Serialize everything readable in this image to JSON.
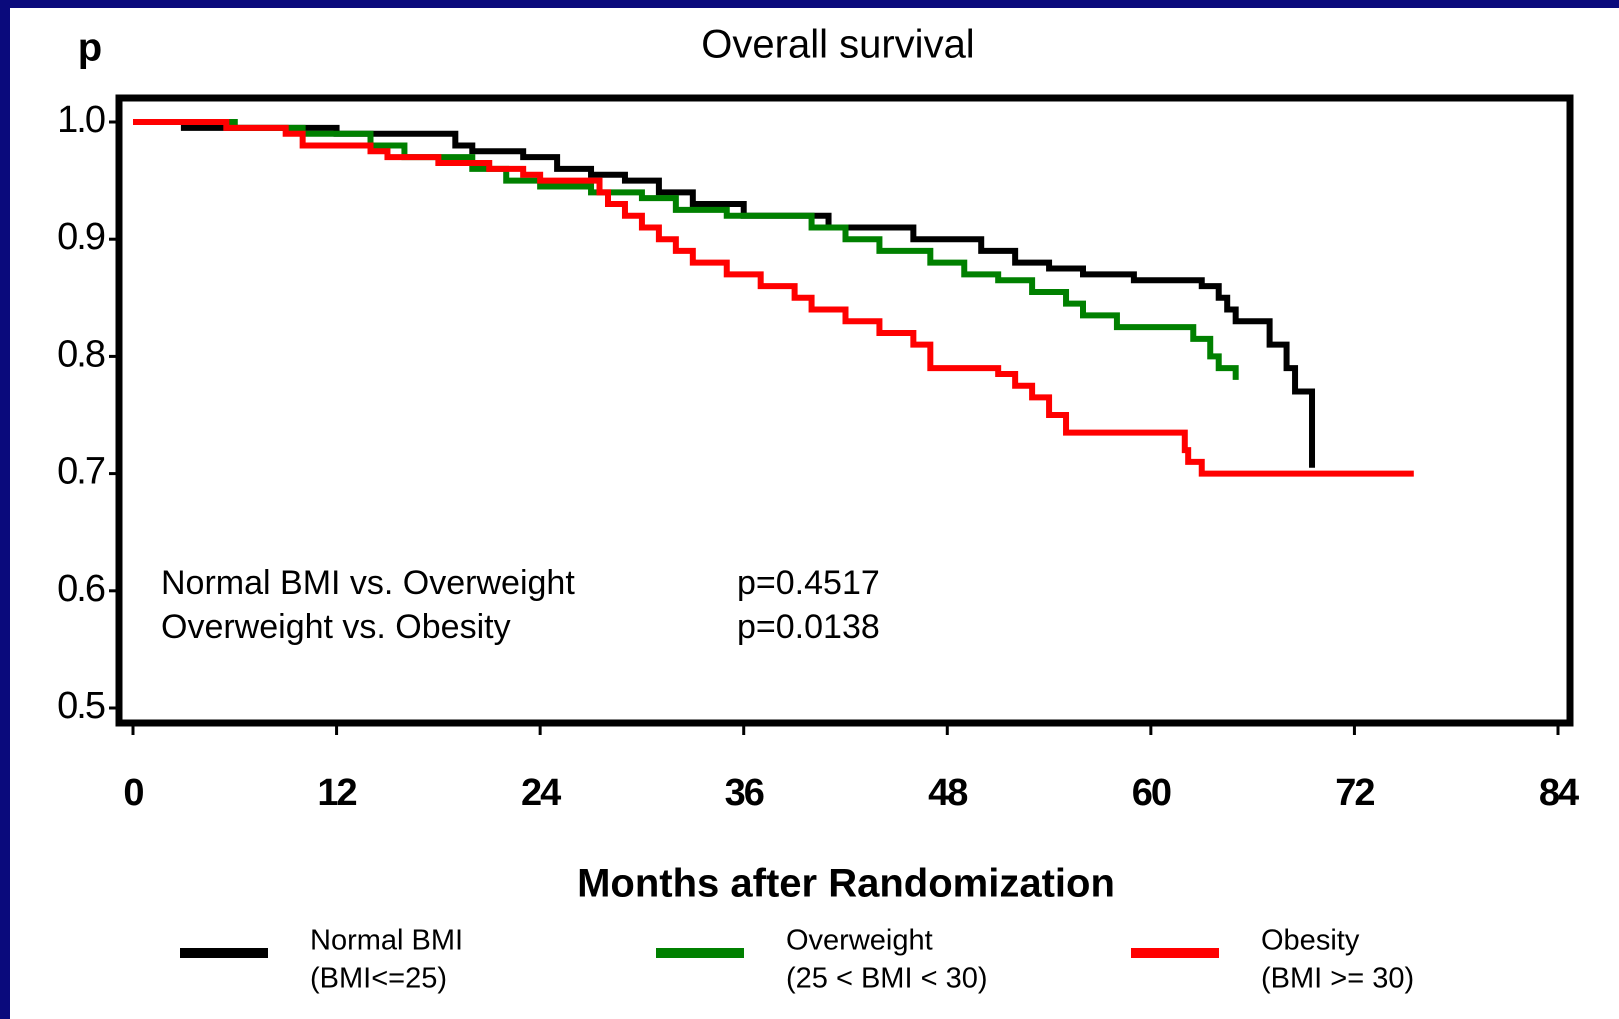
{
  "chart_data": {
    "type": "step",
    "title": "Overall survival",
    "y_label": "p",
    "x_label": "Months after Randomization",
    "xlim": [
      0,
      84
    ],
    "xticks": [
      0,
      12,
      24,
      36,
      48,
      60,
      72,
      84
    ],
    "ylim": [
      0.5,
      1.0
    ],
    "yticks": [
      0.5,
      0.6,
      0.7,
      0.8,
      0.9,
      {
        "value": 1.0,
        "label": "1.0"
      }
    ],
    "series": [
      {
        "name": "Normal BMI",
        "note": "(BMI<=25)",
        "color": "#000000",
        "x": [
          0,
          3,
          12,
          19,
          20,
          23,
          25,
          27,
          29,
          31,
          33,
          36,
          41,
          46,
          50,
          52,
          54,
          56,
          59,
          63,
          64,
          64.5,
          65,
          67,
          68,
          68.5,
          69.5
        ],
        "values": [
          1.0,
          0.995,
          0.99,
          0.98,
          0.975,
          0.97,
          0.96,
          0.955,
          0.95,
          0.94,
          0.93,
          0.92,
          0.91,
          0.9,
          0.89,
          0.88,
          0.875,
          0.87,
          0.865,
          0.86,
          0.85,
          0.84,
          0.83,
          0.81,
          0.79,
          0.77,
          0.705
        ]
      },
      {
        "name": "Overweight",
        "note": "(25 < BMI < 30)",
        "color": "#008000",
        "x": [
          0,
          6,
          10,
          14,
          16,
          20,
          22,
          24,
          27,
          30,
          32,
          35,
          40,
          42,
          44,
          47,
          49,
          51,
          53,
          55,
          56,
          58,
          62.5,
          63.5,
          64,
          65
        ],
        "values": [
          1.0,
          0.995,
          0.99,
          0.98,
          0.97,
          0.96,
          0.95,
          0.945,
          0.94,
          0.935,
          0.925,
          0.92,
          0.91,
          0.9,
          0.89,
          0.88,
          0.87,
          0.865,
          0.855,
          0.845,
          0.835,
          0.825,
          0.815,
          0.8,
          0.79,
          0.78
        ]
      },
      {
        "name": "Obesity",
        "note": "(BMI >= 30)",
        "color": "#ff0000",
        "x": [
          0,
          5.5,
          9,
          10,
          14,
          15,
          18,
          21,
          23,
          24,
          27.5,
          28,
          29,
          30,
          31,
          32,
          33,
          35,
          37,
          39,
          40,
          42,
          44,
          46,
          47,
          51,
          52,
          53,
          54,
          55,
          62,
          62.2,
          63,
          75.5
        ],
        "values": [
          1.0,
          0.995,
          0.99,
          0.98,
          0.975,
          0.97,
          0.965,
          0.96,
          0.955,
          0.95,
          0.94,
          0.93,
          0.92,
          0.91,
          0.9,
          0.89,
          0.88,
          0.87,
          0.86,
          0.85,
          0.84,
          0.83,
          0.82,
          0.81,
          0.79,
          0.785,
          0.775,
          0.765,
          0.75,
          0.735,
          0.72,
          0.71,
          0.7,
          0.7
        ]
      }
    ],
    "annotations": [
      [
        "Normal BMI vs. Overweight",
        "p=0.4517"
      ],
      [
        "Overweight vs. Obesity",
        "p=0.0138"
      ]
    ]
  }
}
